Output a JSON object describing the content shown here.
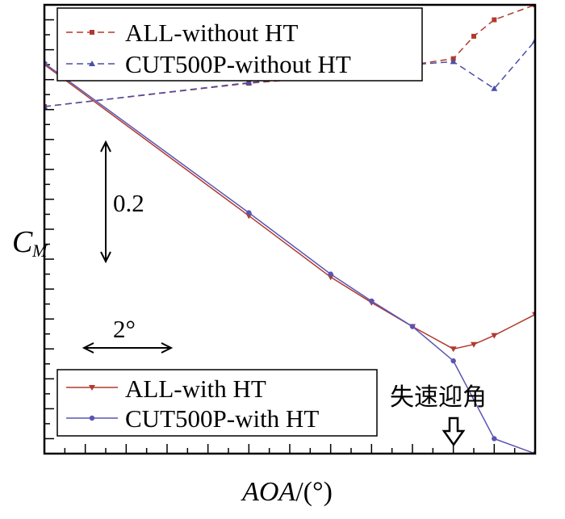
{
  "chart_data": {
    "type": "line",
    "xlabel_italic": "AOA",
    "xlabel_unit": "/(°)",
    "ylabel_main": "C",
    "ylabel_sub": "M",
    "xlim": [
      -10,
      14
    ],
    "ylim": [
      -1.05,
      0.45
    ],
    "tick_labels_shown": false,
    "annotations": {
      "vertical_scale": "0.2",
      "horizontal_scale": "2°",
      "stall_label": "失速迎角"
    },
    "legend_upper": [
      "ALL-without HT",
      "CUT500P-without HT"
    ],
    "legend_lower": [
      "ALL-with HT",
      "CUT500P-with HT"
    ],
    "series": [
      {
        "name": "ALL-without HT",
        "color": "#b03a2e",
        "style": "dashed",
        "marker": "square",
        "x": [
          -10,
          0,
          4,
          8,
          10,
          11,
          12,
          14
        ],
        "y": [
          0.11,
          0.188,
          0.21,
          0.25,
          0.27,
          0.345,
          0.4,
          0.45
        ]
      },
      {
        "name": "CUT500P-without HT",
        "color": "#4b4fa6",
        "style": "dashed",
        "marker": "triangle",
        "x": [
          -10,
          0,
          4,
          8,
          10,
          12,
          14
        ],
        "y": [
          0.11,
          0.19,
          0.215,
          0.25,
          0.26,
          0.17,
          0.33
        ]
      },
      {
        "name": "ALL-with HT",
        "color": "#b03a2e",
        "style": "solid",
        "marker": "triangle-down",
        "x": [
          -10,
          0,
          4,
          6,
          8,
          10,
          11,
          12,
          14
        ],
        "y": [
          0.25,
          -0.255,
          -0.46,
          -0.545,
          -0.625,
          -0.7,
          -0.685,
          -0.655,
          -0.585
        ]
      },
      {
        "name": "CUT500P-with HT",
        "color": "#5a55b3",
        "style": "solid",
        "marker": "circle",
        "x": [
          -10,
          0,
          4,
          6,
          8,
          10,
          12,
          14
        ],
        "y": [
          0.255,
          -0.245,
          -0.45,
          -0.54,
          -0.625,
          -0.74,
          -1.0,
          -1.05
        ]
      }
    ]
  }
}
